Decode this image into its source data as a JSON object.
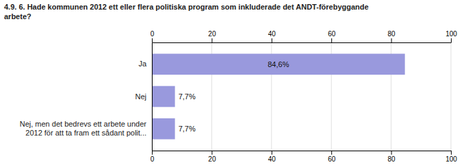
{
  "chart_data": {
    "type": "bar",
    "orientation": "horizontal",
    "title": "4.9. 6. Hade kommunen 2012 ett eller flera politiska program som inkluderade det ANDT-förebyggande\narbete?",
    "categories": [
      "Ja",
      "Nej",
      "Nej, men det bedrevs ett arbete under\n2012 för att ta fram ett sådant polit..."
    ],
    "values": [
      84.6,
      7.7,
      7.7
    ],
    "value_labels": [
      "84,6%",
      "7,7%",
      "7,7%"
    ],
    "data_labels": true,
    "color": "#9999dd",
    "xlim": [
      0,
      100
    ],
    "xticks": [
      0,
      20,
      40,
      60,
      80,
      100
    ],
    "grid": true
  }
}
